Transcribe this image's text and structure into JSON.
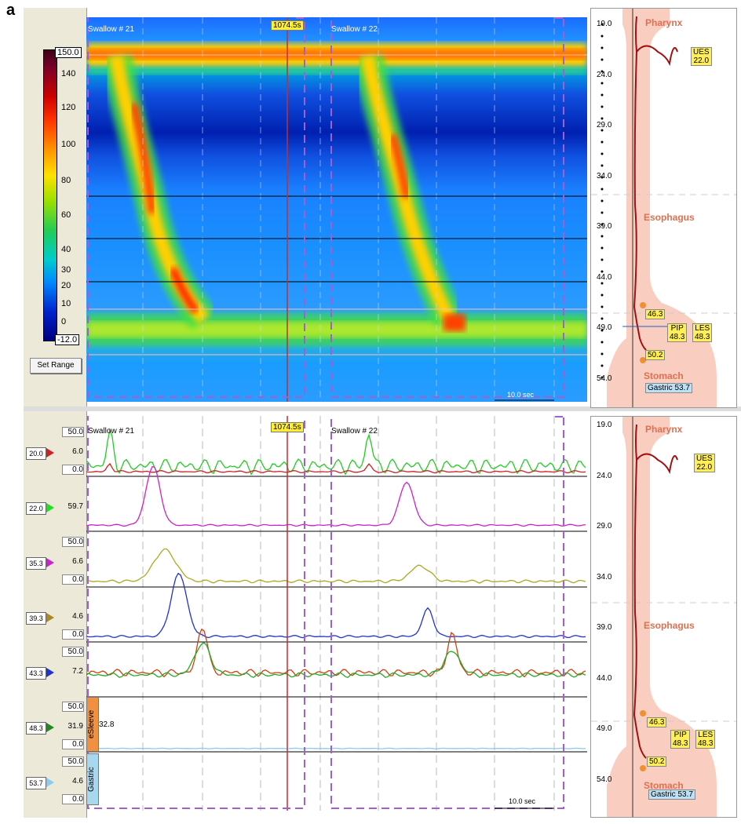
{
  "panel_label": "a",
  "colorbar": {
    "max_value": "150.0",
    "min_value": "-12.0",
    "ticks": [
      "140",
      "120",
      "100",
      "80",
      "60",
      "40",
      "30",
      "20",
      "10",
      "0"
    ],
    "set_range_label": "Set Range"
  },
  "heatmap": {
    "swallow_1": "Swallow # 21",
    "swallow_2": "Swallow # 22",
    "time_tag": "1074.5s",
    "scale_label": "10.0 sec"
  },
  "traces": {
    "swallow_1": "Swallow # 21",
    "swallow_2": "Swallow # 22",
    "time_tag": "1074.5s",
    "scale_label": "10.0 sec",
    "esleeve_tab": "eSleeve",
    "gastric_tab": "Gastric",
    "esleeve_value": "32.8",
    "channels": [
      {
        "pos": "20.0",
        "value": "6.0",
        "scale_top": "50.0",
        "scale_bottom": "0.0",
        "color": "#cc2222"
      },
      {
        "pos": "22.0",
        "value": "59.7",
        "scale_top": "",
        "scale_bottom": "",
        "color": "#22dd22"
      },
      {
        "pos": "35.3",
        "value": "6.6",
        "scale_top": "50.0",
        "scale_bottom": "0.0",
        "color": "#cc22cc"
      },
      {
        "pos": "39.3",
        "value": "4.6",
        "scale_top": "",
        "scale_bottom": "0.0",
        "color": "#aa8822"
      },
      {
        "pos": "43.3",
        "value": "7.2",
        "scale_top": "50.0",
        "scale_bottom": "",
        "color": "#2233cc"
      },
      {
        "pos": "48.3",
        "value": "31.9",
        "scale_top": "50.0",
        "scale_bottom": "0.0",
        "color": "#228822"
      },
      {
        "pos": "53.7",
        "value": "4.6",
        "scale_top": "50.0",
        "scale_bottom": "0.0",
        "color": "#88ccee"
      }
    ]
  },
  "anatomy": {
    "depth_ticks": [
      "19.0",
      "24.0",
      "29.0",
      "34.0",
      "39.0",
      "44.0",
      "49.0",
      "54.0"
    ],
    "pharynx": "Pharynx",
    "esophagus": "Esophagus",
    "stomach": "Stomach",
    "ues": "UES",
    "ues_val": "22.0",
    "pip": "PIP",
    "pip_val": "48.3",
    "les": "LES",
    "les_val": "48.3",
    "marker_46": "46.3",
    "marker_50": "50.2",
    "gastric": "Gastric 53.7"
  },
  "colors": {
    "window_bg": "#ece9d8",
    "dashed_window": "#9955cc",
    "anatomy_fill": "#f8c8b8",
    "anatomy_text": "#e07050",
    "time_tag": "#ffee33"
  }
}
